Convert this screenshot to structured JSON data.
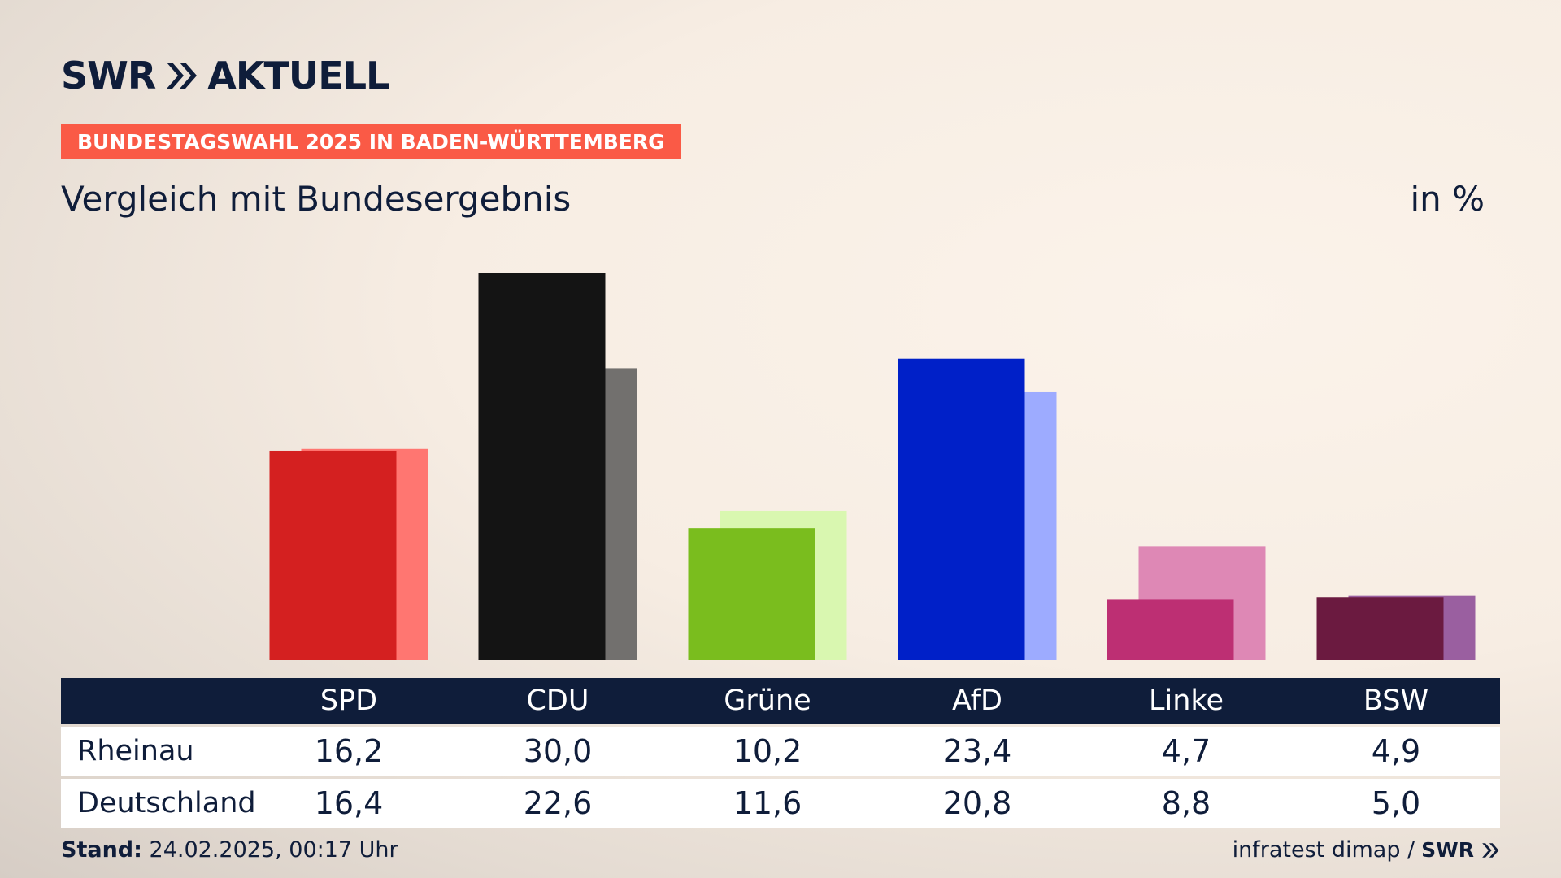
{
  "brand": {
    "name": "SWR",
    "product": "AKTUELL",
    "icon": "double-chevron-icon"
  },
  "banner": "BUNDESTAGSWAHL 2025 IN BADEN-WÜRTTEMBERG",
  "subtitle": "Vergleich mit Bundesergebnis",
  "unit": "in %",
  "colors": {
    "text": "#0f1d3a",
    "banner": "#fa5a46",
    "table_header": "#0f1d3a"
  },
  "chart_data": {
    "type": "bar",
    "categories": [
      "SPD",
      "CDU",
      "Grüne",
      "AfD",
      "Linke",
      "BSW"
    ],
    "series": [
      {
        "name": "Rheinau",
        "values": [
          16.2,
          30.0,
          10.2,
          23.4,
          4.7,
          4.9
        ],
        "colors": [
          "#d42020",
          "#141414",
          "#7abd1e",
          "#0020c8",
          "#bd2f73",
          "#6b1a40"
        ]
      },
      {
        "name": "Deutschland",
        "values": [
          16.4,
          22.6,
          11.6,
          20.8,
          8.8,
          5.0
        ],
        "colors": [
          "#ff7671",
          "#72706e",
          "#d9f7b0",
          "#9dabff",
          "#de88b5",
          "#9a5fa0"
        ]
      }
    ],
    "ylim": [
      0,
      30
    ]
  },
  "table": {
    "headers": [
      "SPD",
      "CDU",
      "Grüne",
      "AfD",
      "Linke",
      "BSW"
    ],
    "rows": [
      {
        "label": "Rheinau",
        "values": [
          "16,2",
          "30,0",
          "10,2",
          "23,4",
          "4,7",
          "4,9"
        ]
      },
      {
        "label": "Deutschland",
        "values": [
          "16,4",
          "22,6",
          "11,6",
          "20,8",
          "8,8",
          "5,0"
        ]
      }
    ]
  },
  "footer": {
    "stand_label": "Stand:",
    "stand_value": "24.02.2025, 00:17 Uhr",
    "source": "infratest dimap /",
    "source_brand": "SWR"
  }
}
